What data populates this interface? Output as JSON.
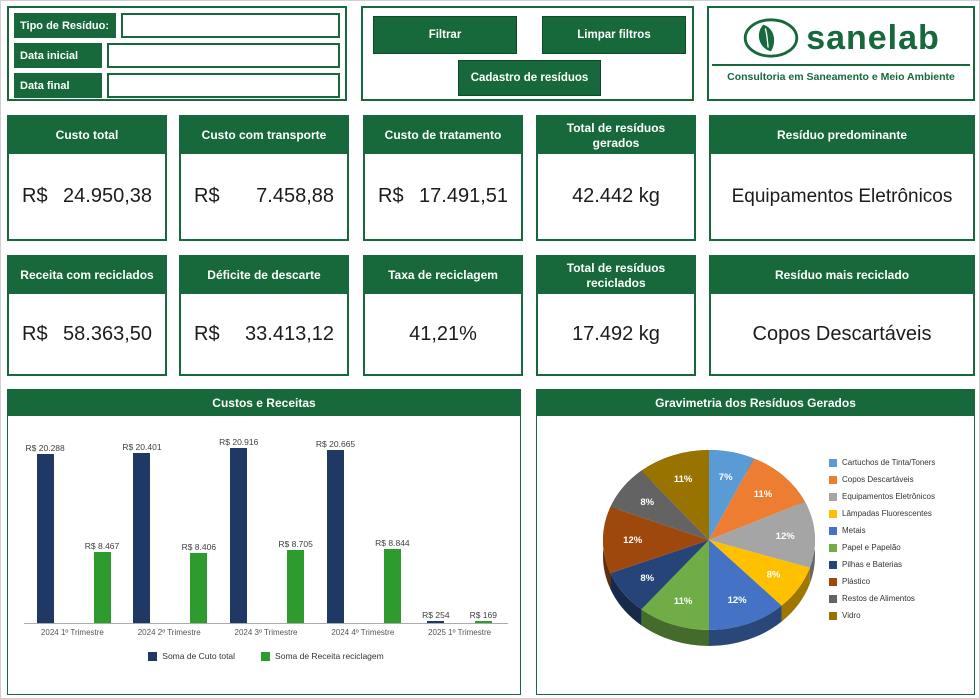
{
  "colors": {
    "brand_green": "#17693B",
    "value_text": "#1C1C1C"
  },
  "filters": {
    "fields": [
      {
        "label": "Tipo de Resíduo:",
        "value": ""
      },
      {
        "label": "Data inicial",
        "value": ""
      },
      {
        "label": "Data final",
        "value": ""
      }
    ]
  },
  "actions": {
    "filtrar": "Filtrar",
    "limpar": "Limpar filtros",
    "cadastro": "Cadastro de resíduos"
  },
  "logo": {
    "brand": "sanelab",
    "tagline": "Consultoria em Saneamento e Meio Ambiente"
  },
  "kpis": {
    "row1": [
      {
        "title": "Custo total",
        "prefix": "R$",
        "value": "24.950,38"
      },
      {
        "title": "Custo com transporte",
        "prefix": "R$",
        "value": "7.458,88"
      },
      {
        "title": "Custo de tratamento",
        "prefix": "R$",
        "value": "17.491,51"
      },
      {
        "title": "Total de resíduos gerados",
        "value": "42.442 kg"
      },
      {
        "title": "Resíduo predominante",
        "value": "Equipamentos Eletrônicos"
      }
    ],
    "row2": [
      {
        "title": "Receita com reciclados",
        "prefix": "R$",
        "value": "58.363,50"
      },
      {
        "title": "Déficite de descarte",
        "prefix": "R$",
        "value": "33.413,12"
      },
      {
        "title": "Taxa de reciclagem",
        "value": "41,21%"
      },
      {
        "title": "Total de resíduos reciclados",
        "value": "17.492 kg"
      },
      {
        "title": "Resíduo mais reciclado",
        "value": "Copos Descartáveis"
      }
    ]
  },
  "chart_data": [
    {
      "type": "bar",
      "title": "Custos e Receitas",
      "categories": [
        "2024 1º Trimestre",
        "2024 2º Trimestre",
        "2024 3º Trimestre",
        "2024 4º Trimestre",
        "2025 1º Trimestre"
      ],
      "series": [
        {
          "name": "Soma de Cuto total",
          "color": "#1F3864",
          "values": [
            20288,
            20401,
            20916,
            20665,
            254
          ],
          "labels": [
            "R$ 20.288",
            "R$ 20.401",
            "R$ 20.916",
            "R$ 20.665",
            "R$ 254"
          ]
        },
        {
          "name": "Soma de Receita reciclagem",
          "color": "#2E9B2F",
          "values": [
            8467,
            8406,
            8705,
            8844,
            169
          ],
          "labels": [
            "R$ 8.467",
            "R$ 8.406",
            "R$ 8.705",
            "R$ 8.844",
            "R$ 169"
          ]
        }
      ],
      "ylim": [
        0,
        23000
      ],
      "grid": false,
      "legend_position": "bottom"
    },
    {
      "type": "pie",
      "title": "Gravimetria dos Resíduos Gerados",
      "slices": [
        {
          "label": "Cartuchos de Tinta/Toners",
          "value": 7,
          "color": "#5B9BD5"
        },
        {
          "label": "Copos Descartáveis",
          "value": 11,
          "color": "#ED7D31"
        },
        {
          "label": "Equipamentos Eletrônicos",
          "value": 12,
          "color": "#A5A5A5"
        },
        {
          "label": "Lâmpadas Fluorescentes",
          "value": 8,
          "color": "#FFC000"
        },
        {
          "label": "Metais",
          "value": 12,
          "color": "#4472C4"
        },
        {
          "label": "Papel e Papelão",
          "value": 11,
          "color": "#70AD47"
        },
        {
          "label": "Pilhas e Baterias",
          "value": 8,
          "color": "#264478"
        },
        {
          "label": "Plástico",
          "value": 12,
          "color": "#9E480E"
        },
        {
          "label": "Restos de Alimentos",
          "value": 8,
          "color": "#636363"
        },
        {
          "label": "Vidro",
          "value": 11,
          "color": "#997300"
        }
      ],
      "legend_position": "right"
    }
  ]
}
